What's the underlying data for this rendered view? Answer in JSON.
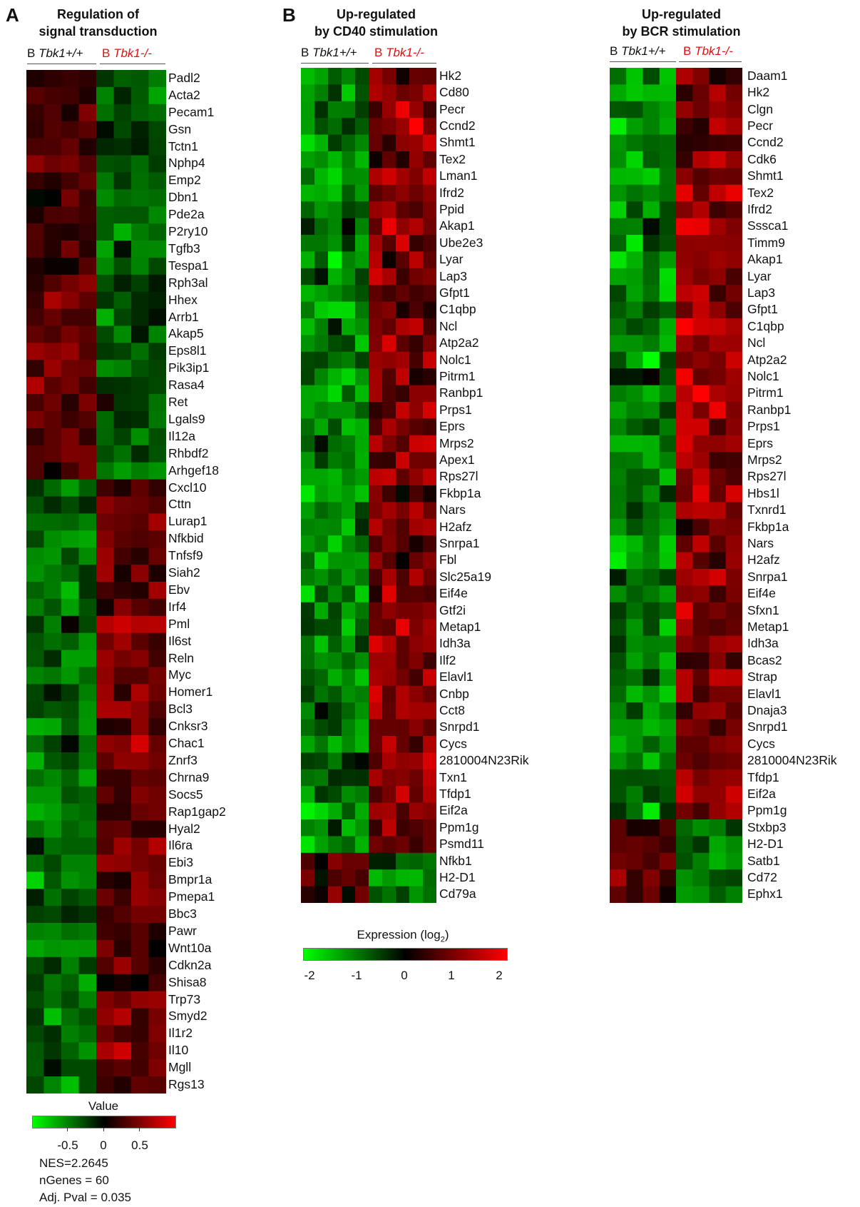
{
  "panels": [
    {
      "letter": "A",
      "title_line1": "Regulation of",
      "title_line2": "signal transduction",
      "wt_prefix": "B",
      "wt_label": "Tbk1+/+",
      "ko_prefix": "B",
      "ko_label": "Tbk1-/-",
      "genes": [
        "Padl2",
        "Acta2",
        "Pecam1",
        "Gsn",
        "Tctn1",
        "Nphp4",
        "Emp2",
        "Dbn1",
        "Pde2a",
        "P2ry10",
        "Tgfb3",
        "Tespa1",
        "Rph3al",
        "Hhex",
        "Arrb1",
        "Akap5",
        "Eps8l1",
        "Pik3ip1",
        "Rasa4",
        "Ret",
        "Lgals9",
        "Il12a",
        "Rhbdf2",
        "Arhgef18",
        "Cxcl10",
        "Cttn",
        "Lurap1",
        "Nfkbid",
        "Tnfsf9",
        "Siah2",
        "Ebv",
        "Irf4",
        "Pml",
        "Il6st",
        "Reln",
        "Myc",
        "Homer1",
        "Bcl3",
        "Cnksr3",
        "Chac1",
        "Znrf3",
        "Chrna9",
        "Socs5",
        "Rap1gap2",
        "Hyal2",
        "Il6ra",
        "Ebi3",
        "Bmpr1a",
        "Pmepa1",
        "Bbc3",
        "Pawr",
        "Wnt10a",
        "Cdkn2a",
        "Shisa8",
        "Trp73",
        "Smyd2",
        "Il1r2",
        "Il10",
        "Mgll",
        "Rgs13"
      ]
    },
    {
      "letter": "B",
      "title_line1": "Up-regulated",
      "title_line2": "by CD40 stimulation",
      "wt_prefix": "B",
      "wt_label": "Tbk1+/+",
      "ko_prefix": "B",
      "ko_label": "Tbk1-/-",
      "genes": [
        "Hk2",
        "Cd80",
        "Pecr",
        "Ccnd2",
        "Shmt1",
        "Tex2",
        "Lman1",
        "Ifrd2",
        "Ppid",
        "Akap1",
        "Ube2e3",
        "Lyar",
        "Lap3",
        "Gfpt1",
        "C1qbp",
        "Ncl",
        "Atp2a2",
        "Nolc1",
        "Pitrm1",
        "Ranbp1",
        "Prps1",
        "Eprs",
        "Mrps2",
        "Apex1",
        "Rps27l",
        "Fkbp1a",
        "Nars",
        "H2afz",
        "Snrpa1",
        "Fbl",
        "Slc25a19",
        "Eif4e",
        "Gtf2i",
        "Metap1",
        "Idh3a",
        "Ilf2",
        "Elavl1",
        "Cnbp",
        "Cct8",
        "Snrpd1",
        "Cycs",
        "2810004N23Rik",
        "Txn1",
        "Tfdp1",
        "Eif2a",
        "Ppm1g",
        "Psmd11",
        "Nfkb1",
        "H2-D1",
        "Cd79a"
      ]
    },
    {
      "letter": "",
      "title_line1": "Up-regulated",
      "title_line2": "by BCR stimulation",
      "wt_prefix": "B",
      "wt_label": "Tbk1+/+",
      "ko_prefix": "B",
      "ko_label": "Tbk1-/-",
      "genes": [
        "Daam1",
        "Hk2",
        "Clgn",
        "Pecr",
        "Ccnd2",
        "Cdk6",
        "Shmt1",
        "Tex2",
        "Ifrd2",
        "Sssca1",
        "Timm9",
        "Akap1",
        "Lyar",
        "Lap3",
        "Gfpt1",
        "C1qbp",
        "Ncl",
        "Atp2a2",
        "Nolc1",
        "Pitrm1",
        "Ranbp1",
        "Prps1",
        "Eprs",
        "Mrps2",
        "Rps27l",
        "Hbs1l",
        "Txnrd1",
        "Fkbp1a",
        "Nars",
        "H2afz",
        "Snrpa1",
        "Eif4e",
        "Sfxn1",
        "Metap1",
        "Idh3a",
        "Bcas2",
        "Strap",
        "Elavl1",
        "Dnaja3",
        "Snrpd1",
        "Cycs",
        "2810004N23Rik",
        "Tfdp1",
        "Eif2a",
        "Ppm1g",
        "Stxbp3",
        "H2-D1",
        "Satb1",
        "Cd72",
        "Ephx1"
      ]
    }
  ],
  "legend_a": {
    "title": "Value",
    "ticks": [
      "-0.5",
      "0",
      "0.5"
    ],
    "stats": [
      "NES=2.2645",
      "nGenes = 60",
      "Adj. Pval = 0.035"
    ]
  },
  "legend_b": {
    "title": "Expression (log",
    "title_sub": "2",
    "title_end": ")",
    "ticks": [
      "-2",
      "-1",
      "0",
      "1",
      "2"
    ]
  },
  "colors": {
    "low": "#00ff00",
    "mid": "#000000",
    "high": "#ff0000",
    "ko_label": "#e01010"
  },
  "chart_data": [
    {
      "type": "heatmap",
      "title": "Regulation of signal transduction",
      "columns": [
        "Tbk1+/+",
        "Tbk1+/+",
        "Tbk1+/+",
        "Tbk1+/+",
        "Tbk1-/-",
        "Tbk1-/-",
        "Tbk1-/-",
        "Tbk1-/-"
      ],
      "scale": [
        -0.8,
        0.8
      ],
      "rows_up_in_wt": 24,
      "rows_up_in_ko": 36
    },
    {
      "type": "heatmap",
      "title": "Up-regulated by CD40 stimulation",
      "columns": [
        "Tbk1+/+",
        "Tbk1+/+",
        "Tbk1+/+",
        "Tbk1+/+",
        "Tbk1+/+",
        "Tbk1-/-",
        "Tbk1-/-",
        "Tbk1-/-",
        "Tbk1-/-",
        "Tbk1-/-"
      ],
      "scale": [
        -2,
        2
      ],
      "rows_up_in_ko": 47,
      "rows_up_in_wt": 3
    },
    {
      "type": "heatmap",
      "title": "Up-regulated by BCR stimulation",
      "columns": [
        "Tbk1+/+",
        "Tbk1+/+",
        "Tbk1+/+",
        "Tbk1+/+",
        "Tbk1-/-",
        "Tbk1-/-",
        "Tbk1-/-",
        "Tbk1-/-"
      ],
      "scale": [
        -2,
        2
      ],
      "rows_up_in_ko": 45,
      "rows_up_in_wt": 5
    }
  ]
}
